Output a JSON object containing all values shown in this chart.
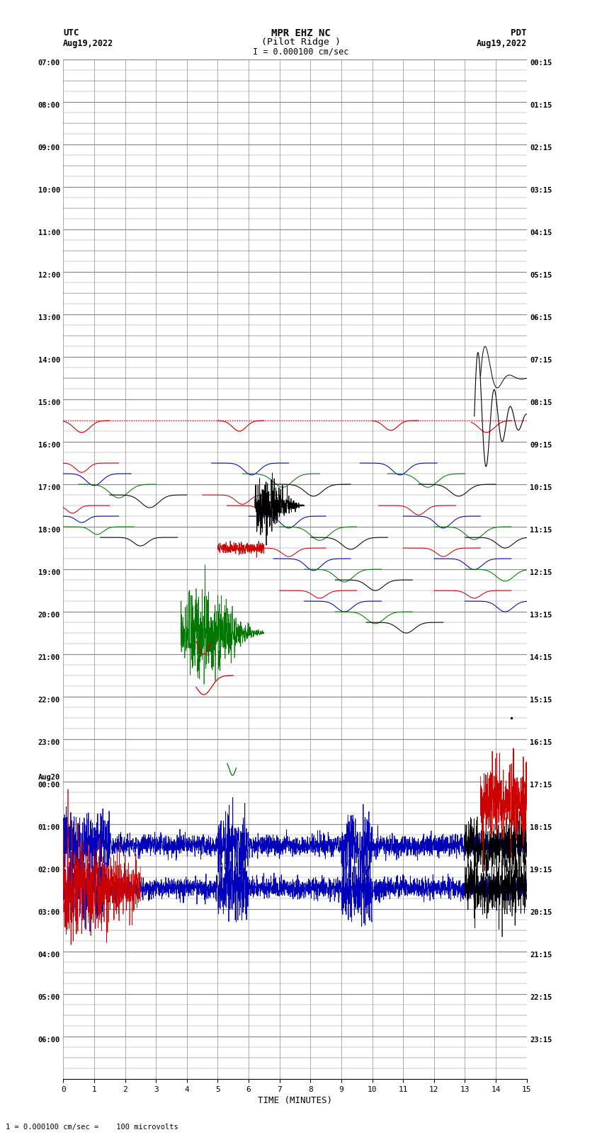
{
  "title_line1": "MPR EHZ NC",
  "title_line2": "(Pilot Ridge )",
  "title_line3": "I = 0.000100 cm/sec",
  "label_utc": "UTC",
  "label_utc_date": "Aug19,2022",
  "label_pdt": "PDT",
  "label_pdt_date": "Aug19,2022",
  "xlabel": "TIME (MINUTES)",
  "footer_text": "1 = 0.000100 cm/sec =    100 microvolts",
  "bg_color": "#ffffff",
  "grid_color": "#888888",
  "num_rows": 24,
  "x_min": 0,
  "x_max": 15,
  "x_ticks": [
    0,
    1,
    2,
    3,
    4,
    5,
    6,
    7,
    8,
    9,
    10,
    11,
    12,
    13,
    14,
    15
  ],
  "utc_labels": [
    "07:00",
    "08:00",
    "09:00",
    "10:00",
    "11:00",
    "12:00",
    "13:00",
    "14:00",
    "15:00",
    "16:00",
    "17:00",
    "18:00",
    "19:00",
    "20:00",
    "21:00",
    "22:00",
    "23:00",
    "00:00",
    "01:00",
    "02:00",
    "03:00",
    "04:00",
    "05:00",
    "06:00"
  ],
  "pdt_labels": [
    "00:15",
    "01:15",
    "02:15",
    "03:15",
    "04:15",
    "05:15",
    "06:15",
    "07:15",
    "08:15",
    "09:15",
    "10:15",
    "11:15",
    "12:15",
    "13:15",
    "14:15",
    "15:15",
    "16:15",
    "17:15",
    "18:15",
    "19:15",
    "20:15",
    "21:15",
    "22:15",
    "23:15"
  ],
  "aug20_row": 17,
  "color_red": "#cc0000",
  "color_blue": "#0000bb",
  "color_green": "#007700",
  "color_black": "#000000",
  "seed": 42
}
